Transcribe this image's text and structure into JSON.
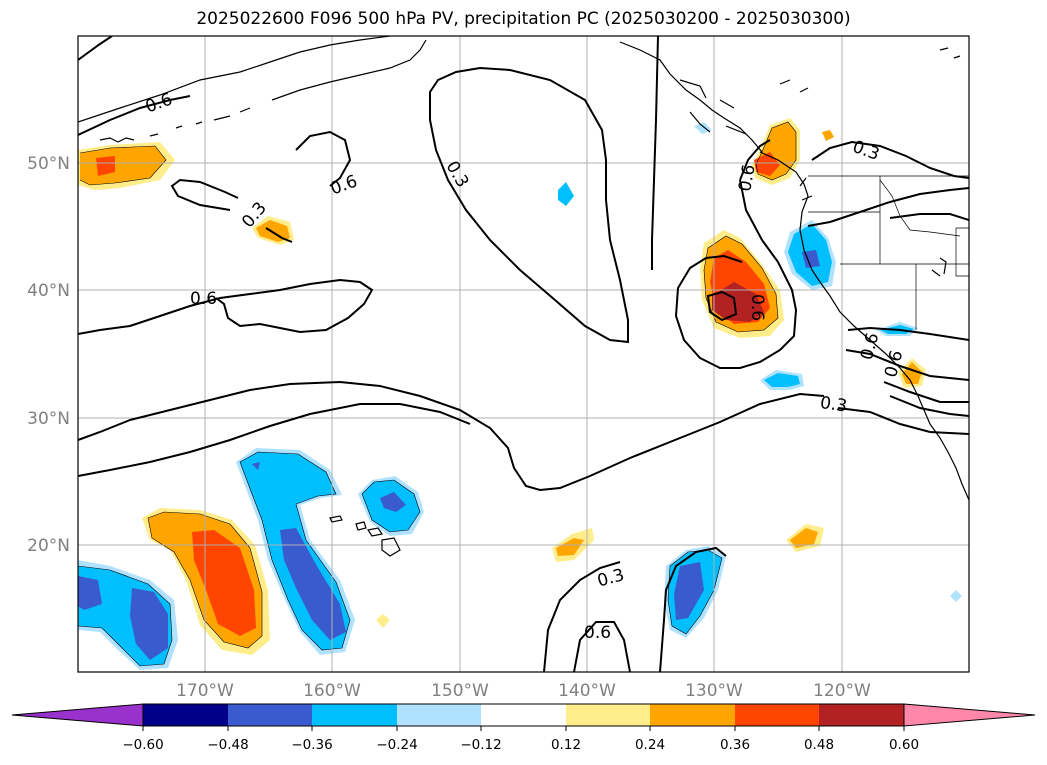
{
  "title": "2025022600 F096 500 hPa PV, precipitation PC (2025030200 - 2025030300)",
  "axes": {
    "lon_labels": [
      "170°W",
      "160°W",
      "150°W",
      "140°W",
      "130°W",
      "120°W"
    ],
    "lat_labels": [
      "50°N",
      "40°N",
      "30°N",
      "20°N"
    ]
  },
  "contour_labels": [
    "0.6",
    "0.6",
    "0.3",
    "0.3",
    "0.6",
    "0.3",
    "0.6",
    "0.6",
    "0.6",
    "0.3",
    "0.3",
    "0.6",
    "0.6"
  ],
  "colorbar": {
    "ticks": [
      "−0.60",
      "−0.48",
      "−0.36",
      "−0.24",
      "−0.12",
      "0.12",
      "0.24",
      "0.36",
      "0.48",
      "0.60"
    ],
    "colors": [
      "#9932cc",
      "#00008b",
      "#3a5bcf",
      "#00bfff",
      "#b0e2ff",
      "#ffffff",
      "#ffec8b",
      "#ffa500",
      "#ff4500",
      "#b22222",
      "#ff88aa"
    ]
  },
  "chart_data": {
    "type": "map",
    "title": "2025022600 F096 500 hPa PV, precipitation PC (2025030200 - 2025030300)",
    "lon_range": [
      -180,
      -110
    ],
    "lat_range": [
      10,
      60
    ],
    "grid": true,
    "contour_levels": [
      0.3,
      0.6
    ],
    "colorbar_levels": [
      -0.6,
      -0.48,
      -0.36,
      -0.24,
      -0.12,
      0.12,
      0.24,
      0.36,
      0.48,
      0.6
    ]
  }
}
